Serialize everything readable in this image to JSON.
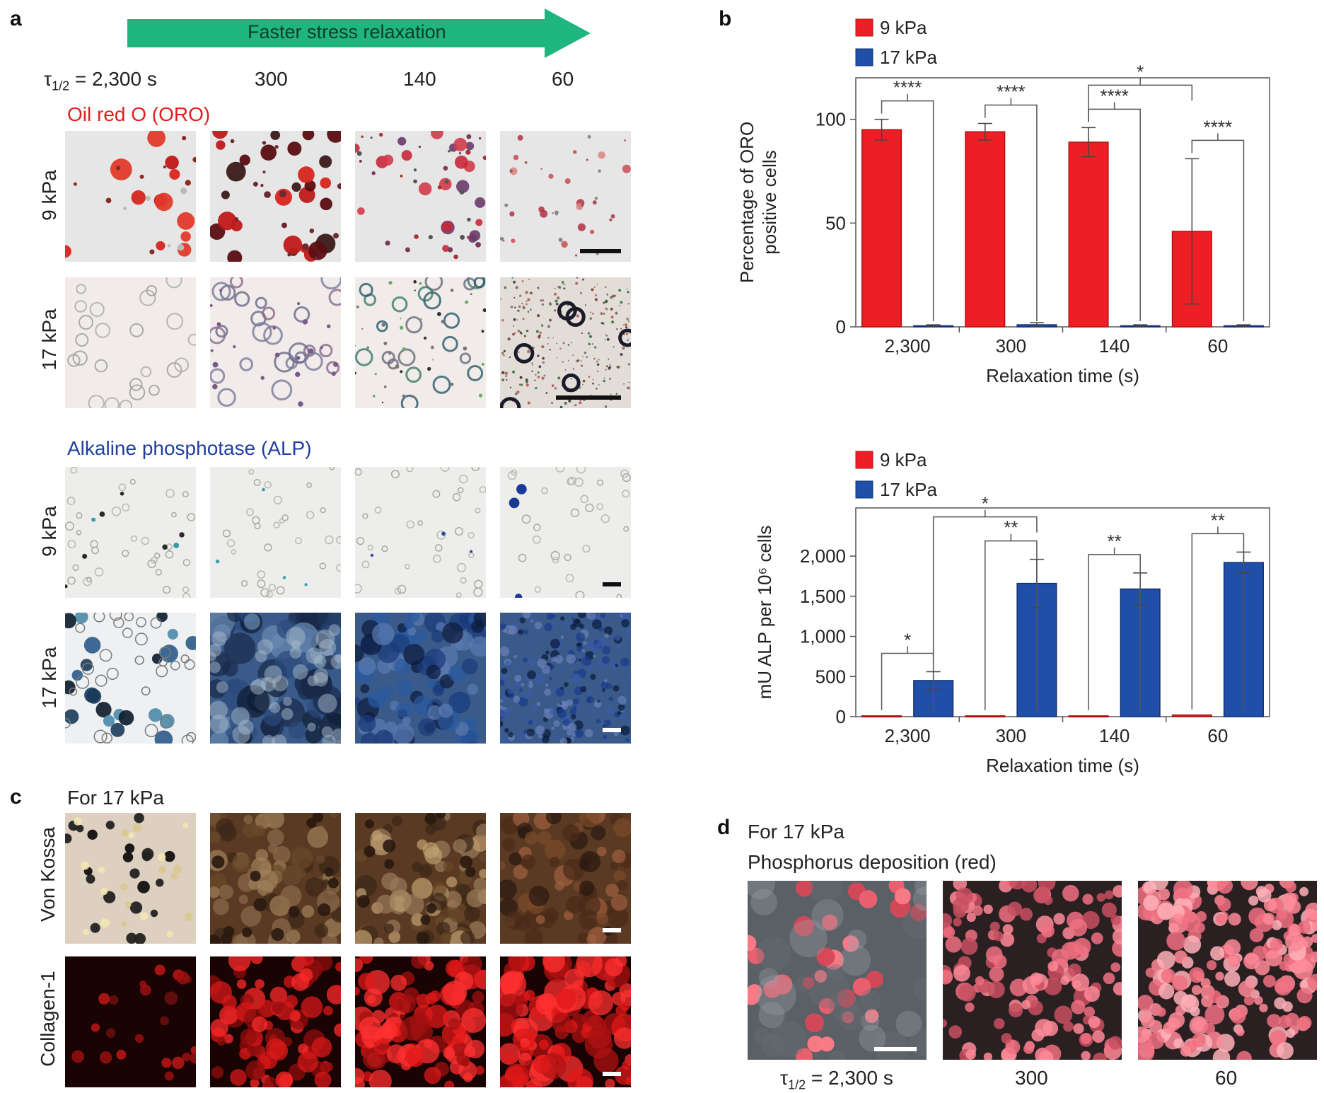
{
  "panels": {
    "a": {
      "letter": "a",
      "arrow_label": "Faster stress relaxation",
      "tau_label": "τ1/2 = 2,300 s",
      "columns": [
        "2,300",
        "300",
        "140",
        "60"
      ],
      "oro_title": "Oil red O (ORO)",
      "alp_title": "Alkaline phosphotase (ALP)",
      "row_9": "9 kPa",
      "row_17": "17 kPa"
    },
    "b": {
      "letter": "b"
    },
    "c": {
      "letter": "c",
      "title": "For 17 kPa",
      "row_vk": "Von Kossa",
      "row_col": "Collagen-1"
    },
    "d": {
      "letter": "d",
      "title": "For 17 kPa",
      "subtitle": "Phosphorus deposition (red)",
      "tau_label": "τ1/2 = 2,300 s",
      "col_300": "300",
      "col_60": "60"
    }
  },
  "colors": {
    "red": "#ee1f24",
    "blue": "#1f4fa8",
    "arrow": "#1fb57e",
    "oro_title": "#e02020",
    "alp_title": "#1f3f9f"
  },
  "chart_data": [
    {
      "type": "bar",
      "categories": [
        "2,300",
        "300",
        "140",
        "60"
      ],
      "series": [
        {
          "name": "9 kPa",
          "values": [
            95,
            94,
            89,
            46
          ],
          "errors": [
            5,
            4,
            7,
            35
          ]
        },
        {
          "name": "17 kPa",
          "values": [
            0.5,
            1,
            0.5,
            0.5
          ],
          "errors": [
            0.5,
            1,
            0.5,
            0.5
          ]
        }
      ],
      "xlabel": "Relaxation time (s)",
      "ylabel": "Percentage of ORO positive cells",
      "ylabel_lines": [
        "Percentage of ORO",
        "positive cells"
      ],
      "ylim": [
        0,
        120
      ],
      "yticks": [
        0,
        50,
        100
      ],
      "legend": "top-left",
      "significance": [
        {
          "from": [
            0,
            0
          ],
          "to": [
            0,
            1
          ],
          "label": "****"
        },
        {
          "from": [
            1,
            0
          ],
          "to": [
            1,
            1
          ],
          "label": "****"
        },
        {
          "from": [
            2,
            0
          ],
          "to": [
            2,
            1
          ],
          "label": "****"
        },
        {
          "from": [
            3,
            0
          ],
          "to": [
            3,
            1
          ],
          "label": "****"
        },
        {
          "from": [
            2,
            0
          ],
          "to": [
            3,
            0
          ],
          "label": "*"
        }
      ]
    },
    {
      "type": "bar",
      "categories": [
        "2,300",
        "300",
        "140",
        "60"
      ],
      "series": [
        {
          "name": "9 kPa",
          "values": [
            10,
            10,
            10,
            20
          ],
          "errors": [
            0,
            0,
            0,
            0
          ]
        },
        {
          "name": "17 kPa",
          "values": [
            450,
            1660,
            1590,
            1920
          ],
          "errors": [
            110,
            300,
            200,
            130
          ]
        }
      ],
      "xlabel": "Relaxation time (s)",
      "ylabel": "mU ALP per 10⁶ cells",
      "ylim": [
        0,
        2600
      ],
      "yticks": [
        0,
        500,
        1000,
        1500,
        2000
      ],
      "ytick_labels": [
        "0",
        "500",
        "1,000",
        "1,500",
        "2,000"
      ],
      "legend": "top-left",
      "significance": [
        {
          "from": [
            0,
            0
          ],
          "to": [
            0,
            1
          ],
          "label": "*"
        },
        {
          "from": [
            1,
            0
          ],
          "to": [
            1,
            1
          ],
          "label": "**"
        },
        {
          "from": [
            2,
            0
          ],
          "to": [
            2,
            1
          ],
          "label": "**"
        },
        {
          "from": [
            3,
            0
          ],
          "to": [
            3,
            1
          ],
          "label": "**"
        },
        {
          "from": [
            0,
            1
          ],
          "to": [
            1,
            1
          ],
          "label": "*"
        }
      ]
    }
  ]
}
